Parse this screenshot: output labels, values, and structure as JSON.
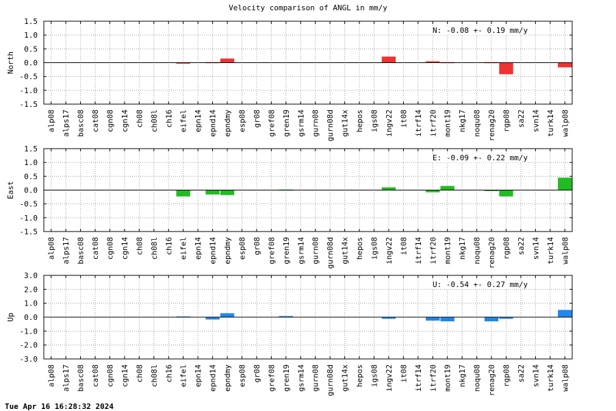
{
  "title": "Velocity comparison of ANGL in mm/y",
  "footer": "Tue Apr 16 16:28:32 2024",
  "colors": {
    "north": "#ee3333",
    "east": "#22bb22",
    "up": "#1e88ee"
  },
  "chart_data": [
    {
      "type": "bar",
      "ylabel": "North",
      "ylim": [
        -1.5,
        1.5
      ],
      "ytick_labels": [
        "1.5",
        "1.0",
        "0.5",
        "0.0",
        "-0.5",
        "-1.0",
        "-1.5"
      ],
      "annotation": "N:  -0.08 +-  0.19 mm/y",
      "grid": true,
      "categories": [
        "alp08",
        "alps17",
        "basc08",
        "cat08",
        "cgn08",
        "cgn14",
        "ch08",
        "ch08l",
        "ch16",
        "eifel",
        "epn14",
        "epnd14",
        "epndmy",
        "esp08",
        "gr08",
        "gref08",
        "gren19",
        "gsrm14",
        "gurn08",
        "gurn08d",
        "gut14x",
        "hepos",
        "igs08",
        "ingv22",
        "it08",
        "itrf14",
        "itrf20",
        "mont19",
        "nkg17",
        "noqu08",
        "renag20",
        "rgp08",
        "sa22",
        "svn14",
        "turk14",
        "walp08"
      ],
      "values": [
        0,
        0,
        0,
        0,
        0,
        0,
        0,
        0,
        0,
        -0.03,
        0,
        0.02,
        0.15,
        0,
        0,
        0,
        0,
        0,
        0,
        0,
        0,
        0,
        0,
        0.22,
        0,
        0,
        0.05,
        0.02,
        0,
        0,
        0.02,
        -0.42,
        0,
        0,
        0,
        -0.17
      ]
    },
    {
      "type": "bar",
      "ylabel": "East",
      "ylim": [
        -1.5,
        1.5
      ],
      "ytick_labels": [
        "1.5",
        "1.0",
        "0.5",
        "0.0",
        "-0.5",
        "-1.0",
        "-1.5"
      ],
      "annotation": "E:  -0.09 +-  0.22 mm/y",
      "grid": true,
      "categories": [
        "alp08",
        "alps17",
        "basc08",
        "cat08",
        "cgn08",
        "cgn14",
        "ch08",
        "ch08l",
        "ch16",
        "eifel",
        "epn14",
        "epnd14",
        "epndmy",
        "esp08",
        "gr08",
        "gref08",
        "gren19",
        "gsrm14",
        "gurn08",
        "gurn08d",
        "gut14x",
        "hepos",
        "igs08",
        "ingv22",
        "it08",
        "itrf14",
        "itrf20",
        "mont19",
        "nkg17",
        "noqu08",
        "renag20",
        "rgp08",
        "sa22",
        "svn14",
        "turk14",
        "walp08"
      ],
      "values": [
        0,
        0,
        0,
        0,
        0,
        0,
        0,
        0,
        0,
        -0.23,
        0,
        -0.16,
        -0.18,
        0,
        0,
        0,
        0.02,
        0,
        0,
        0,
        0,
        0,
        0,
        0.1,
        0,
        0,
        -0.08,
        0.15,
        0,
        0,
        -0.03,
        -0.23,
        0,
        0,
        0,
        0.45
      ]
    },
    {
      "type": "bar",
      "ylabel": "Up",
      "ylim": [
        -3.0,
        3.0
      ],
      "ytick_labels": [
        "3.0",
        "2.0",
        "1.0",
        "0.0",
        "-1.0",
        "-2.0",
        "-3.0"
      ],
      "annotation": "U:  -0.54 +-  0.27 mm/y",
      "grid": true,
      "categories": [
        "alp08",
        "alps17",
        "basc08",
        "cat08",
        "cgn08",
        "cgn14",
        "ch08",
        "ch08l",
        "ch16",
        "eifel",
        "epn14",
        "epnd14",
        "epndmy",
        "esp08",
        "gr08",
        "gref08",
        "gren19",
        "gsrm14",
        "gurn08",
        "gurn08d",
        "gut14x",
        "hepos",
        "igs08",
        "ingv22",
        "it08",
        "itrf14",
        "itrf20",
        "mont19",
        "nkg17",
        "noqu08",
        "renag20",
        "rgp08",
        "sa22",
        "svn14",
        "turk14",
        "walp08"
      ],
      "values": [
        0,
        0,
        0,
        0,
        0,
        0,
        0,
        0,
        0,
        0.05,
        0,
        -0.17,
        0.28,
        0,
        0,
        0,
        0.08,
        0,
        0,
        0,
        0,
        0,
        0,
        -0.12,
        0,
        0,
        -0.25,
        -0.3,
        0,
        0,
        -0.3,
        -0.12,
        0,
        0,
        0,
        0.52
      ]
    }
  ]
}
